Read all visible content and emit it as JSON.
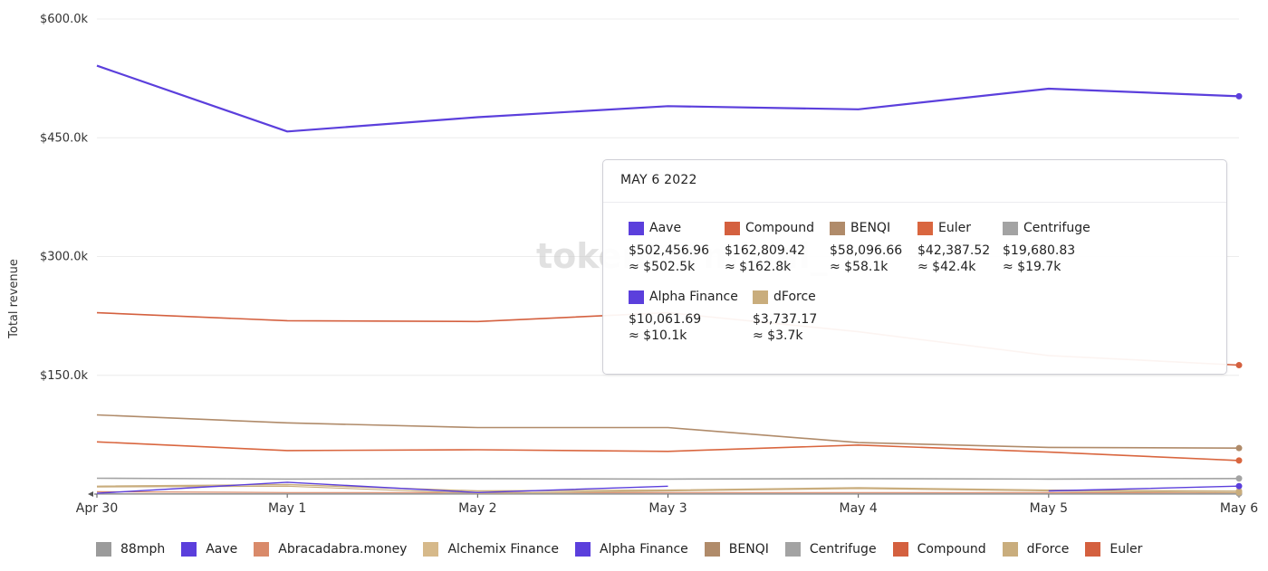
{
  "chart_data": {
    "type": "line",
    "ylabel": "Total revenue",
    "xlabel": "",
    "ylim": [
      0,
      600000
    ],
    "yticks": [
      0,
      150000,
      300000,
      450000,
      600000
    ],
    "ytick_labels": [
      "",
      "$150.0k",
      "$300.0k",
      "$450.0k",
      "$600.0k"
    ],
    "categories": [
      "Apr 30",
      "May 1",
      "May 2",
      "May 3",
      "May 4",
      "May 5",
      "May 6"
    ],
    "watermark": "tokenterminal_",
    "series": [
      {
        "name": "Aave",
        "color": "#5b3fdc",
        "width": 2.2,
        "values": [
          541000,
          458000,
          476000,
          490000,
          486000,
          512000,
          502457
        ]
      },
      {
        "name": "Compound",
        "color": "#d4603f",
        "width": 1.6,
        "values": [
          229000,
          219000,
          218000,
          229000,
          205000,
          175000,
          162809
        ]
      },
      {
        "name": "BENQI",
        "color": "#b08b6a",
        "width": 1.6,
        "values": [
          100000,
          90000,
          84000,
          84000,
          65000,
          59000,
          58097
        ]
      },
      {
        "name": "Euler",
        "color": "#d9663f",
        "width": 1.6,
        "values": [
          66000,
          55000,
          56000,
          54000,
          62000,
          53000,
          42388
        ]
      },
      {
        "name": "Centrifuge",
        "color": "#a3a3a3",
        "width": 1.6,
        "values": [
          20000,
          19000,
          19500,
          19000,
          19500,
          19000,
          19681
        ]
      },
      {
        "name": "Alpha Finance",
        "color": "#5b3fdc",
        "width": 1.4,
        "values": [
          1000,
          15000,
          2000,
          10000,
          null,
          4000,
          10062
        ]
      },
      {
        "name": "dForce",
        "color": "#c9ad7d",
        "width": 1.4,
        "values": [
          10000,
          12000,
          4000,
          5000,
          8000,
          5000,
          3737
        ]
      },
      {
        "name": "Alchemix Finance",
        "color": "#c9ad7d",
        "width": 1.2,
        "values": [
          9000,
          10000,
          1000,
          4000,
          7000,
          4000,
          2000
        ]
      },
      {
        "name": "88mph",
        "color": "#9b9b9b",
        "width": 1.2,
        "values": [
          500,
          500,
          500,
          500,
          500,
          500,
          500
        ]
      },
      {
        "name": "Abracadabra.money",
        "color": "#d98a6a",
        "width": 1.2,
        "values": [
          3000,
          2000,
          2000,
          2000,
          2000,
          2000,
          1000
        ]
      }
    ]
  },
  "tooltip": {
    "date": "MAY 6 2022",
    "items": [
      {
        "name": "Aave",
        "color": "#5b3fdc",
        "value": "$502,456.96",
        "approx": "≈ $502.5k"
      },
      {
        "name": "Compound",
        "color": "#d4603f",
        "value": "$162,809.42",
        "approx": "≈ $162.8k"
      },
      {
        "name": "BENQI",
        "color": "#b08b6a",
        "value": "$58,096.66",
        "approx": "≈ $58.1k"
      },
      {
        "name": "Euler",
        "color": "#d9663f",
        "value": "$42,387.52",
        "approx": "≈ $42.4k"
      },
      {
        "name": "Centrifuge",
        "color": "#a3a3a3",
        "value": "$19,680.83",
        "approx": "≈ $19.7k"
      },
      {
        "name": "Alpha Finance",
        "color": "#5b3fdc",
        "value": "$10,061.69",
        "approx": "≈ $10.1k"
      },
      {
        "name": "dForce",
        "color": "#c9ad7d",
        "value": "$3,737.17",
        "approx": "≈ $3.7k"
      }
    ]
  },
  "legend": [
    {
      "name": "88mph",
      "color": "#9b9b9b"
    },
    {
      "name": "Aave",
      "color": "#5b3fdc"
    },
    {
      "name": "Abracadabra.money",
      "color": "#d98a6a"
    },
    {
      "name": "Alchemix Finance",
      "color": "#d6b98a"
    },
    {
      "name": "Alpha Finance",
      "color": "#5b3fdc"
    },
    {
      "name": "BENQI",
      "color": "#b08b6a"
    },
    {
      "name": "Centrifuge",
      "color": "#a3a3a3"
    },
    {
      "name": "Compound",
      "color": "#d4603f"
    },
    {
      "name": "dForce",
      "color": "#c9ad7d"
    },
    {
      "name": "Euler",
      "color": "#d4603f"
    }
  ]
}
